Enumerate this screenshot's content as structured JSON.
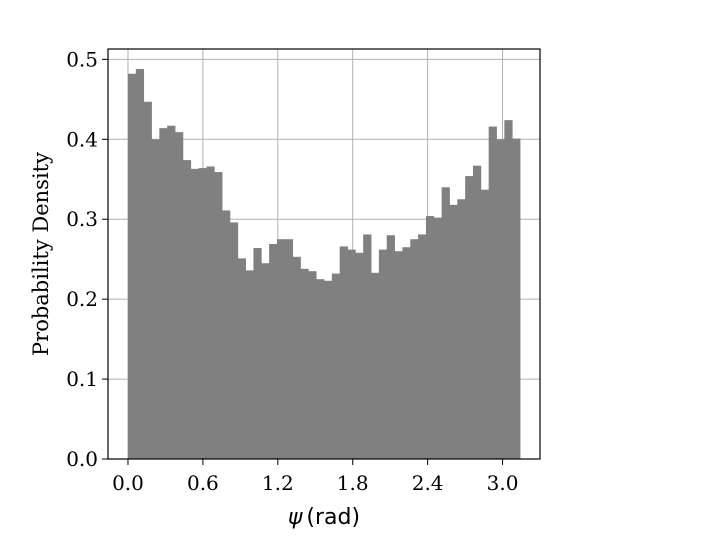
{
  "chart_data": {
    "type": "bar",
    "xlabel_symbol": "ψ",
    "xlabel_unit": "(rad)",
    "ylabel": "Probability Density",
    "xlim": [
      -0.16,
      3.3
    ],
    "ylim": [
      0.0,
      0.513
    ],
    "xticks": [
      0.0,
      0.6,
      1.2,
      1.8,
      2.4,
      3.0
    ],
    "xtick_labels": [
      "0.0",
      "0.6",
      "1.2",
      "1.8",
      "2.4",
      "3.0"
    ],
    "yticks": [
      0.0,
      0.1,
      0.2,
      0.3,
      0.4,
      0.5
    ],
    "ytick_labels": [
      "0.0",
      "0.1",
      "0.2",
      "0.3",
      "0.4",
      "0.5"
    ],
    "grid": true,
    "bar_color": "#808080",
    "bin_start": 0.0,
    "bin_width": 0.0628,
    "values": [
      0.482,
      0.488,
      0.447,
      0.4,
      0.414,
      0.417,
      0.409,
      0.374,
      0.363,
      0.364,
      0.366,
      0.359,
      0.311,
      0.296,
      0.251,
      0.236,
      0.264,
      0.245,
      0.269,
      0.275,
      0.275,
      0.253,
      0.238,
      0.235,
      0.225,
      0.223,
      0.232,
      0.266,
      0.262,
      0.258,
      0.281,
      0.233,
      0.262,
      0.28,
      0.26,
      0.265,
      0.275,
      0.281,
      0.304,
      0.302,
      0.34,
      0.318,
      0.325,
      0.354,
      0.367,
      0.337,
      0.416,
      0.4,
      0.424,
      0.401
    ]
  }
}
